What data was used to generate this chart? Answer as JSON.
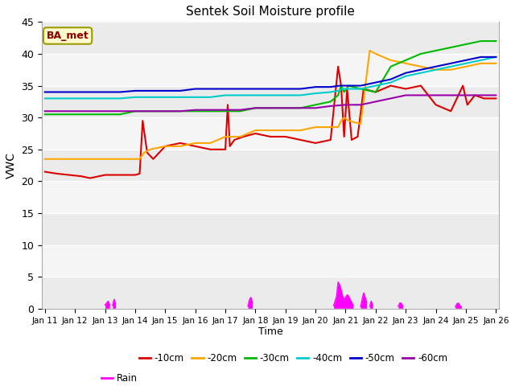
{
  "title": "Sentek Soil Moisture profile",
  "xlabel": "Time",
  "ylabel": "VWC",
  "ylim": [
    0,
    45
  ],
  "x_tick_labels": [
    "Jan 11",
    "Jan 12",
    "Jan 13",
    "Jan 14",
    "Jan 15",
    "Jan 16",
    "Jan 17",
    "Jan 18",
    "Jan 19",
    "Jan 20",
    "Jan 21",
    "Jan 22",
    "Jan 23",
    "Jan 24",
    "Jan 25",
    "Jan 26"
  ],
  "annotation_text": "BA_met",
  "annotation_color": "#8B0000",
  "annotation_bg": "#FFFACD",
  "annotation_edge": "#9B9B00",
  "fig_bg": "#FFFFFF",
  "plot_bg_light": "#F0F0F0",
  "plot_bg_dark": "#E0E0E0",
  "series": {
    "-10cm": {
      "color": "#DD0000",
      "x": [
        0,
        0.4,
        0.8,
        1.2,
        1.5,
        2.0,
        2.5,
        3.0,
        3.15,
        3.25,
        3.4,
        3.6,
        4.0,
        4.5,
        5.0,
        5.5,
        6.0,
        6.08,
        6.15,
        6.3,
        6.6,
        7.0,
        7.5,
        8.0,
        8.5,
        9.0,
        9.5,
        9.75,
        9.85,
        9.95,
        10.05,
        10.2,
        10.4,
        10.6,
        11.0,
        11.5,
        12.0,
        12.5,
        13.0,
        13.5,
        13.9,
        14.05,
        14.3,
        14.6,
        15.0
      ],
      "y": [
        21.5,
        21.2,
        21.0,
        20.8,
        20.5,
        21.0,
        21.0,
        21.0,
        21.2,
        29.5,
        24.5,
        23.5,
        25.5,
        26.0,
        25.5,
        25.0,
        25.0,
        32.0,
        25.5,
        26.5,
        27.0,
        27.5,
        27.0,
        27.0,
        26.5,
        26.0,
        26.5,
        38.0,
        35.0,
        27.0,
        34.5,
        26.5,
        27.0,
        34.5,
        34.0,
        35.0,
        34.5,
        35.0,
        32.0,
        31.0,
        35.0,
        32.0,
        33.5,
        33.0,
        33.0
      ]
    },
    "-20cm": {
      "color": "#FFA500",
      "x": [
        0,
        0.5,
        1.0,
        1.5,
        2.0,
        2.5,
        3.0,
        3.15,
        3.3,
        3.5,
        4.0,
        4.5,
        5.0,
        5.5,
        6.0,
        6.5,
        7.0,
        7.5,
        8.0,
        8.5,
        9.0,
        9.5,
        9.75,
        9.85,
        9.95,
        10.1,
        10.5,
        10.8,
        11.0,
        11.5,
        12.0,
        12.5,
        13.0,
        13.5,
        14.0,
        14.5,
        15.0
      ],
      "y": [
        23.5,
        23.5,
        23.5,
        23.5,
        23.5,
        23.5,
        23.5,
        23.5,
        24.5,
        25.0,
        25.5,
        25.5,
        26.0,
        26.0,
        27.0,
        27.0,
        28.0,
        28.0,
        28.0,
        28.0,
        28.5,
        28.5,
        28.5,
        29.5,
        30.0,
        29.5,
        29.0,
        40.5,
        40.0,
        39.0,
        38.5,
        38.0,
        37.5,
        37.5,
        38.0,
        38.5,
        38.5
      ]
    },
    "-30cm": {
      "color": "#00BB00",
      "x": [
        0,
        0.5,
        1.0,
        1.5,
        2.0,
        2.5,
        3.0,
        3.3,
        3.6,
        4.0,
        4.5,
        5.0,
        5.5,
        6.0,
        6.5,
        7.0,
        7.5,
        8.0,
        8.5,
        9.0,
        9.5,
        9.75,
        9.85,
        9.95,
        10.1,
        10.5,
        11.0,
        11.5,
        12.0,
        12.5,
        13.0,
        13.5,
        14.0,
        14.5,
        15.0
      ],
      "y": [
        30.5,
        30.5,
        30.5,
        30.5,
        30.5,
        30.5,
        31.0,
        31.0,
        31.0,
        31.0,
        31.0,
        31.0,
        31.0,
        31.0,
        31.0,
        31.5,
        31.5,
        31.5,
        31.5,
        32.0,
        32.5,
        33.5,
        35.0,
        34.0,
        35.0,
        34.5,
        34.0,
        38.0,
        39.0,
        40.0,
        40.5,
        41.0,
        41.5,
        42.0,
        42.0
      ]
    },
    "-40cm": {
      "color": "#00CCCC",
      "x": [
        0,
        0.5,
        1.0,
        1.5,
        2.0,
        2.5,
        3.0,
        3.5,
        4.0,
        4.5,
        5.0,
        5.5,
        6.0,
        6.5,
        7.0,
        7.5,
        8.0,
        8.5,
        9.0,
        9.5,
        9.75,
        9.9,
        10.1,
        10.5,
        11.0,
        11.5,
        12.0,
        12.5,
        13.0,
        13.5,
        14.0,
        14.5,
        15.0
      ],
      "y": [
        33.0,
        33.0,
        33.0,
        33.0,
        33.0,
        33.0,
        33.2,
        33.2,
        33.2,
        33.2,
        33.2,
        33.2,
        33.5,
        33.5,
        33.5,
        33.5,
        33.5,
        33.5,
        33.8,
        34.0,
        34.2,
        34.5,
        34.5,
        34.5,
        35.0,
        35.5,
        36.5,
        37.0,
        37.5,
        38.0,
        38.5,
        39.0,
        39.5
      ]
    },
    "-50cm": {
      "color": "#0000CC",
      "x": [
        0,
        0.5,
        1.0,
        1.5,
        2.0,
        2.5,
        3.0,
        3.5,
        4.0,
        4.5,
        5.0,
        5.5,
        6.0,
        6.5,
        7.0,
        7.5,
        8.0,
        8.5,
        9.0,
        9.5,
        9.8,
        10.0,
        10.5,
        11.0,
        11.5,
        12.0,
        12.5,
        13.0,
        13.5,
        14.0,
        14.5,
        15.0
      ],
      "y": [
        34.0,
        34.0,
        34.0,
        34.0,
        34.0,
        34.0,
        34.2,
        34.2,
        34.2,
        34.2,
        34.5,
        34.5,
        34.5,
        34.5,
        34.5,
        34.5,
        34.5,
        34.5,
        34.8,
        34.8,
        35.0,
        35.0,
        35.0,
        35.5,
        36.0,
        37.0,
        37.5,
        38.0,
        38.5,
        39.0,
        39.5,
        39.5
      ]
    },
    "-60cm": {
      "color": "#9900AA",
      "x": [
        0,
        0.5,
        1.0,
        1.5,
        2.0,
        2.5,
        3.0,
        3.5,
        4.0,
        4.5,
        5.0,
        5.5,
        6.0,
        6.5,
        7.0,
        7.5,
        8.0,
        8.5,
        9.0,
        9.5,
        10.0,
        10.5,
        11.0,
        11.5,
        12.0,
        12.5,
        13.0,
        13.5,
        14.0,
        14.5,
        15.0
      ],
      "y": [
        31.0,
        31.0,
        31.0,
        31.0,
        31.0,
        31.0,
        31.0,
        31.0,
        31.0,
        31.0,
        31.2,
        31.2,
        31.2,
        31.2,
        31.5,
        31.5,
        31.5,
        31.5,
        31.5,
        31.8,
        32.0,
        32.0,
        32.5,
        33.0,
        33.5,
        33.5,
        33.5,
        33.5,
        33.5,
        33.5,
        33.5
      ]
    }
  },
  "rain": {
    "color": "#FF00FF",
    "events": [
      {
        "x": [
          2.0,
          2.05,
          2.1,
          2.15
        ],
        "y": [
          0.6,
          0.9,
          1.2,
          0.7
        ]
      },
      {
        "x": [
          2.25,
          2.3,
          2.35
        ],
        "y": [
          0.5,
          1.5,
          0.8
        ]
      },
      {
        "x": [
          6.75,
          6.8,
          6.85,
          6.9
        ],
        "y": [
          0.4,
          1.4,
          1.8,
          1.0
        ]
      },
      {
        "x": [
          9.6,
          9.65,
          9.7,
          9.75,
          9.8,
          9.85,
          9.9,
          9.95,
          10.0,
          10.05,
          10.1,
          10.15,
          10.2,
          10.25
        ],
        "y": [
          0.5,
          1.2,
          2.0,
          4.2,
          3.8,
          3.0,
          2.0,
          1.5,
          1.8,
          2.2,
          2.0,
          1.5,
          1.0,
          0.6
        ]
      },
      {
        "x": [
          10.5,
          10.55,
          10.6,
          10.65,
          10.7
        ],
        "y": [
          0.3,
          1.5,
          2.5,
          1.8,
          1.0
        ]
      },
      {
        "x": [
          10.8,
          10.85,
          10.9
        ],
        "y": [
          0.4,
          1.2,
          0.6
        ]
      },
      {
        "x": [
          11.75,
          11.8,
          11.85,
          11.9
        ],
        "y": [
          0.4,
          0.9,
          0.9,
          0.5
        ]
      },
      {
        "x": [
          13.65,
          13.7,
          13.75,
          13.8,
          13.85
        ],
        "y": [
          0.3,
          0.8,
          0.9,
          0.5,
          0.3
        ]
      }
    ]
  },
  "legend_series_order": [
    "-10cm",
    "-20cm",
    "-30cm",
    "-40cm",
    "-50cm",
    "-60cm",
    "Rain"
  ],
  "legend_ncol": 6
}
